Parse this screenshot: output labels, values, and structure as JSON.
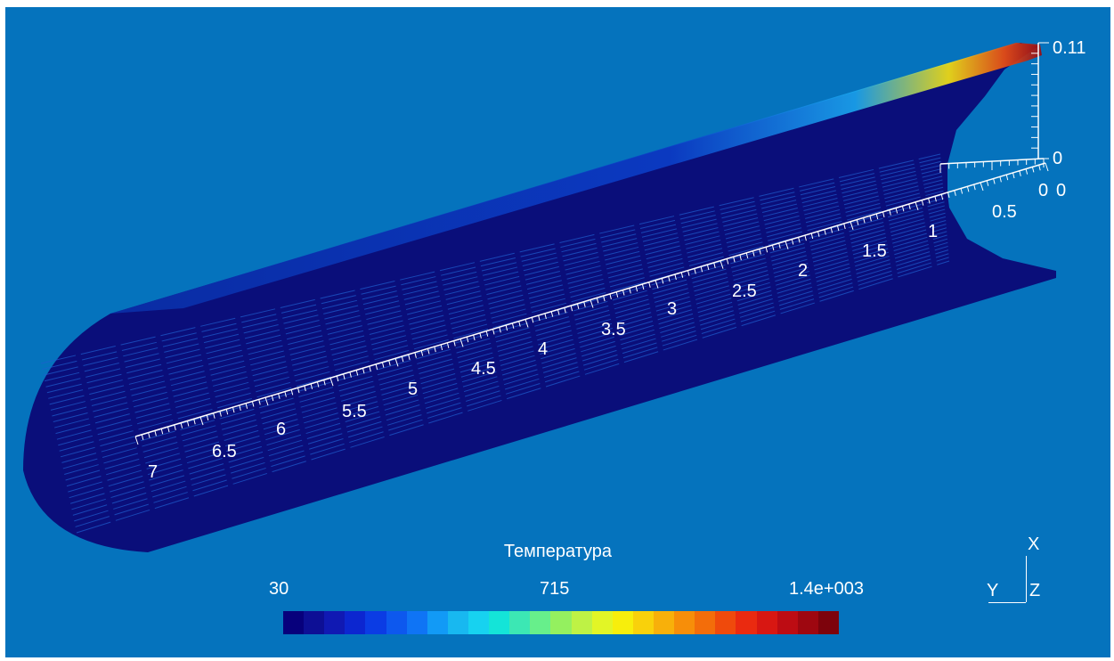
{
  "window": {
    "background": "#0573bd",
    "mesh_color": "#0a0e7a"
  },
  "axis_length": {
    "labels": [
      "7",
      "6.5",
      "6",
      "5.5",
      "5",
      "4.5",
      "4",
      "3.5",
      "3",
      "2.5",
      "2",
      "1.5",
      "1",
      "0.5",
      "0"
    ]
  },
  "axis_vertical": {
    "top_label": "0.11",
    "bottom_label": "0"
  },
  "axis_depth": {
    "label": "0"
  },
  "legend": {
    "title": "Температура",
    "min_label": "30",
    "mid_label": "715",
    "max_label": "1.4e+003",
    "colors": [
      "#07007c",
      "#0d0f95",
      "#1019b3",
      "#0c26d0",
      "#0b3ce4",
      "#0d58ee",
      "#0f74f5",
      "#129af6",
      "#18b8f0",
      "#17d2f0",
      "#14e4d8",
      "#3ce7b4",
      "#67ef8b",
      "#94f05f",
      "#bef245",
      "#e2f526",
      "#f7ee0c",
      "#f9d10b",
      "#f8b00a",
      "#f78e09",
      "#f36d0a",
      "#ef4a0c",
      "#ea2a10",
      "#d81712",
      "#bd0c13",
      "#9e0710",
      "#7d030c"
    ]
  },
  "orientation_triad": {
    "x_label": "X",
    "y_label": "Y",
    "z_label": "Z"
  }
}
